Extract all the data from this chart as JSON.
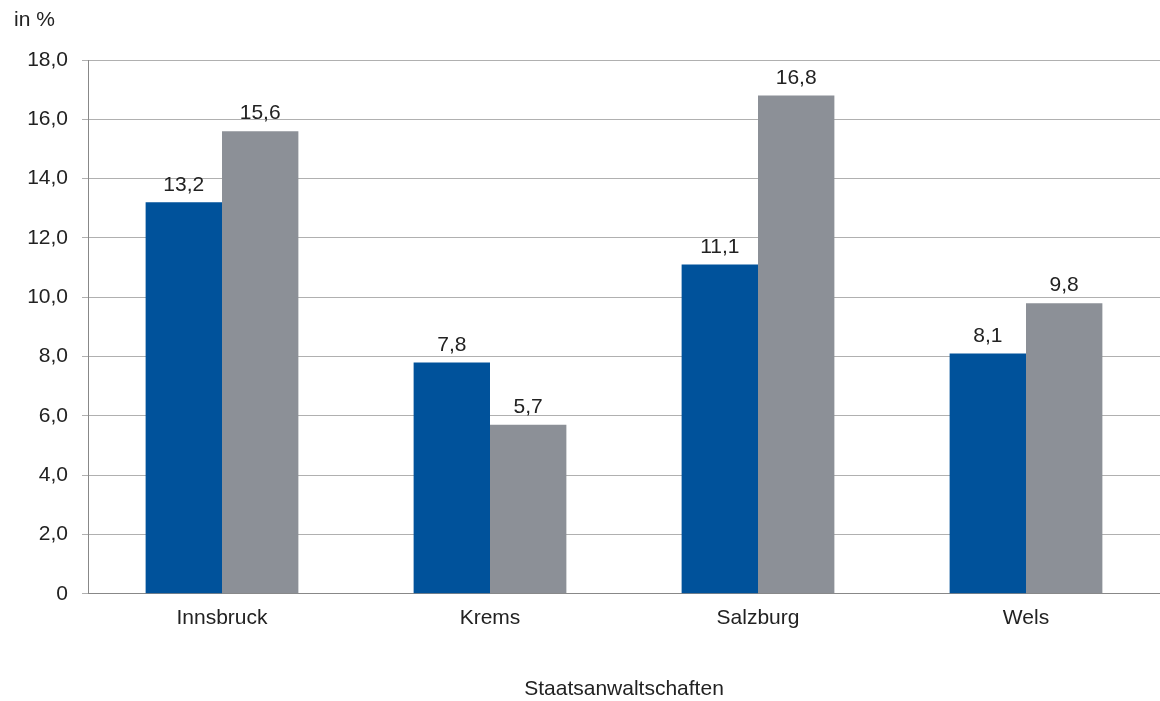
{
  "chart_data": {
    "type": "bar",
    "ylabel": "in %",
    "xlabel": "Staatsanwaltschaften",
    "categories": [
      "Innsbruck",
      "Krems",
      "Salzburg",
      "Wels"
    ],
    "series": [
      {
        "color": "#00529b",
        "values": [
          13.2,
          7.8,
          11.1,
          8.1
        ],
        "value_labels": [
          "13,2",
          "7,8",
          "11,1",
          "8,1"
        ]
      },
      {
        "color": "#8c9097",
        "values": [
          15.6,
          5.7,
          16.8,
          9.8
        ],
        "value_labels": [
          "15,6",
          "5,7",
          "16,8",
          "9,8"
        ]
      }
    ],
    "ylim": [
      0,
      18
    ],
    "yticks": [
      0,
      {
        "value": 2,
        "label": "2,0"
      },
      {
        "value": 4,
        "label": "4,0"
      },
      {
        "value": 6,
        "label": "6,0"
      },
      {
        "value": 8,
        "label": "8,0"
      },
      {
        "value": 10,
        "label": "10,0"
      },
      {
        "value": 12,
        "label": "12,0"
      },
      {
        "value": 14,
        "label": "14,0"
      },
      {
        "value": 16,
        "label": "16,0"
      },
      {
        "value": 18,
        "label": "18,0"
      }
    ],
    "grid": "y",
    "legend": false
  }
}
